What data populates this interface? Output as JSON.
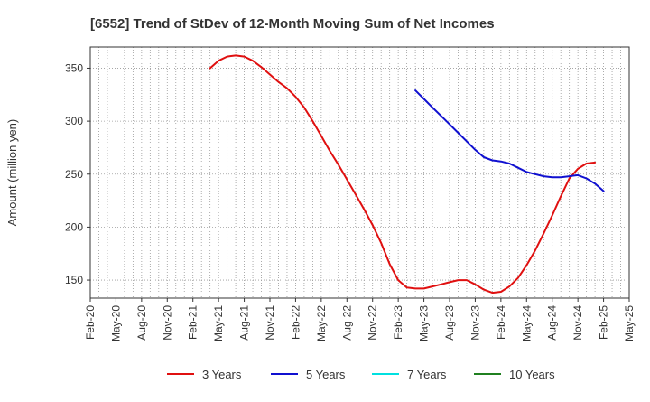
{
  "chart_data": {
    "type": "line",
    "title": "[6552]  Trend of StDev of 12-Month Moving Sum of Net Incomes",
    "xlabel": "",
    "ylabel": "Amount (million yen)",
    "x_ticks": [
      "Feb-20",
      "May-20",
      "Aug-20",
      "Nov-20",
      "Feb-21",
      "May-21",
      "Aug-21",
      "Nov-21",
      "Feb-22",
      "May-22",
      "Aug-22",
      "Nov-22",
      "Feb-23",
      "May-23",
      "Aug-23",
      "Nov-23",
      "Feb-24",
      "May-24",
      "Aug-24",
      "Nov-24",
      "Feb-25",
      "May-25"
    ],
    "y_ticks": [
      150,
      200,
      250,
      300,
      350
    ],
    "ylim": [
      133,
      370
    ],
    "grid": true,
    "legend_position": "bottom",
    "series": [
      {
        "name": "3 Years",
        "color": "#e01010",
        "x": [
          "Apr-21",
          "May-21",
          "Jun-21",
          "Jul-21",
          "Aug-21",
          "Sep-21",
          "Oct-21",
          "Nov-21",
          "Dec-21",
          "Jan-22",
          "Feb-22",
          "Mar-22",
          "Apr-22",
          "May-22",
          "Jun-22",
          "Jul-22",
          "Aug-22",
          "Sep-22",
          "Oct-22",
          "Nov-22",
          "Dec-22",
          "Jan-23",
          "Feb-23",
          "Mar-23",
          "Apr-23",
          "May-23",
          "Jun-23",
          "Jul-23",
          "Aug-23",
          "Sep-23",
          "Oct-23",
          "Nov-23",
          "Dec-23",
          "Jan-24",
          "Feb-24",
          "Mar-24",
          "Apr-24",
          "May-24",
          "Jun-24",
          "Jul-24",
          "Aug-24",
          "Sep-24",
          "Oct-24",
          "Nov-24",
          "Dec-24",
          "Jan-25",
          "Feb-25"
        ],
        "values": [
          350,
          357,
          361,
          362,
          361,
          357,
          351,
          344,
          337,
          331,
          323,
          313,
          300,
          286,
          272,
          259,
          245,
          231,
          217,
          202,
          185,
          165,
          150,
          143,
          142,
          142,
          144,
          146,
          148,
          150,
          150,
          146,
          141,
          138,
          139,
          144,
          152,
          164,
          178,
          194,
          211,
          229,
          246,
          255,
          260,
          261,
          null
        ]
      },
      {
        "name": "5 Years",
        "color": "#1010d0",
        "x": [
          "Apr-23",
          "May-23",
          "Jun-23",
          "Jul-23",
          "Aug-23",
          "Sep-23",
          "Oct-23",
          "Nov-23",
          "Dec-23",
          "Jan-24",
          "Feb-24",
          "Mar-24",
          "Apr-24",
          "May-24",
          "Jun-24",
          "Jul-24",
          "Aug-24",
          "Sep-24",
          "Oct-24",
          "Nov-24",
          "Dec-24",
          "Jan-25",
          "Feb-25"
        ],
        "values": [
          329,
          321,
          313,
          305,
          297,
          289,
          281,
          273,
          266,
          263,
          262,
          260,
          256,
          252,
          250,
          248,
          247,
          247,
          248,
          249,
          246,
          241,
          234
        ]
      },
      {
        "name": "7 Years",
        "color": "#00e0e0",
        "x": [],
        "values": []
      },
      {
        "name": "10 Years",
        "color": "#208020",
        "x": [],
        "values": []
      }
    ]
  }
}
